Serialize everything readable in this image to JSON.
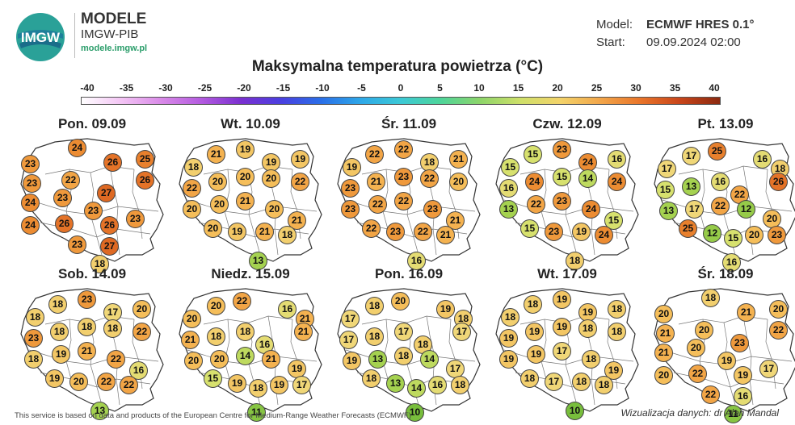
{
  "header": {
    "logo_text": "IMGW",
    "brand_title": "MODELE",
    "brand_subtitle": "IMGW-PIB",
    "brand_url": "modele.imgw.pl",
    "model_label": "Model:",
    "model_value": "ECMWF HRES 0.1°",
    "start_label": "Start:",
    "start_value": "09.09.2024 02:00"
  },
  "title": "Maksymalna temperatura powietrza (°C)",
  "scale": {
    "ticks": [
      "-40",
      "-35",
      "-30",
      "-25",
      "-20",
      "-15",
      "-10",
      "-5",
      "0",
      "5",
      "10",
      "15",
      "20",
      "25",
      "30",
      "35",
      "40"
    ],
    "colors": [
      "#ffffff",
      "#f3c4f4",
      "#d98ae8",
      "#b45be0",
      "#7a2fd0",
      "#4a3fe0",
      "#2a6fe8",
      "#2ea8e8",
      "#3cc9d6",
      "#4ed59a",
      "#8ed56a",
      "#cfe06a",
      "#f3d36a",
      "#f2a64a",
      "#e9752a",
      "#c8451a",
      "#8c2a10"
    ]
  },
  "panels": [
    {
      "date": "Pon. 09.09",
      "values": [
        23,
        24,
        26,
        25,
        23,
        22,
        26,
        24,
        23,
        27,
        24,
        23,
        26,
        26,
        23,
        23,
        27,
        18
      ]
    },
    {
      "date": "Wt. 10.09",
      "values": [
        18,
        21,
        19,
        19,
        19,
        22,
        20,
        20,
        20,
        22,
        20,
        20,
        21,
        20,
        21,
        20,
        19,
        21,
        18,
        13
      ]
    },
    {
      "date": "Śr. 11.09",
      "values": [
        19,
        22,
        22,
        18,
        21,
        23,
        21,
        23,
        22,
        20,
        23,
        22,
        22,
        23,
        21,
        22,
        23,
        22,
        21,
        16
      ]
    },
    {
      "date": "Czw. 12.09",
      "values": [
        15,
        15,
        23,
        24,
        16,
        16,
        24,
        15,
        14,
        24,
        13,
        22,
        23,
        24,
        15,
        15,
        23,
        19,
        24,
        18
      ]
    },
    {
      "date": "Pt. 13.09",
      "values": [
        17,
        17,
        25,
        16,
        18,
        15,
        13,
        16,
        26,
        22,
        13,
        17,
        22,
        12,
        20,
        25,
        12,
        15,
        20,
        23,
        16
      ]
    },
    {
      "date": "Sob. 14.09",
      "values": [
        18,
        18,
        23,
        17,
        20,
        23,
        18,
        18,
        18,
        22,
        18,
        19,
        21,
        22,
        16,
        19,
        20,
        22,
        22,
        13
      ]
    },
    {
      "date": "Niedz. 15.09",
      "values": [
        20,
        20,
        22,
        16,
        21,
        21,
        18,
        18,
        21,
        16,
        20,
        20,
        14,
        21,
        19,
        15,
        19,
        18,
        19,
        17,
        11
      ]
    },
    {
      "date": "Pon. 16.09",
      "values": [
        17,
        18,
        20,
        19,
        18,
        17,
        18,
        17,
        17,
        18,
        19,
        13,
        18,
        14,
        17,
        18,
        13,
        14,
        16,
        18,
        10
      ]
    },
    {
      "date": "Wt. 17.09",
      "values": [
        18,
        18,
        19,
        19,
        18,
        19,
        19,
        19,
        18,
        18,
        19,
        19,
        17,
        18,
        19,
        18,
        17,
        18,
        18,
        10
      ]
    },
    {
      "date": "Śr. 18.09",
      "values": [
        20,
        18,
        21,
        20,
        21,
        20,
        22,
        21,
        20,
        23,
        20,
        19,
        22,
        19,
        17,
        22,
        16,
        11
      ]
    }
  ],
  "footer": {
    "left": "This service is based on data and products of the European Centre for Medium-Range Weather Forecasts (ECMWF)",
    "right": "Wizualizacja danych: dr Alan Mandal"
  }
}
